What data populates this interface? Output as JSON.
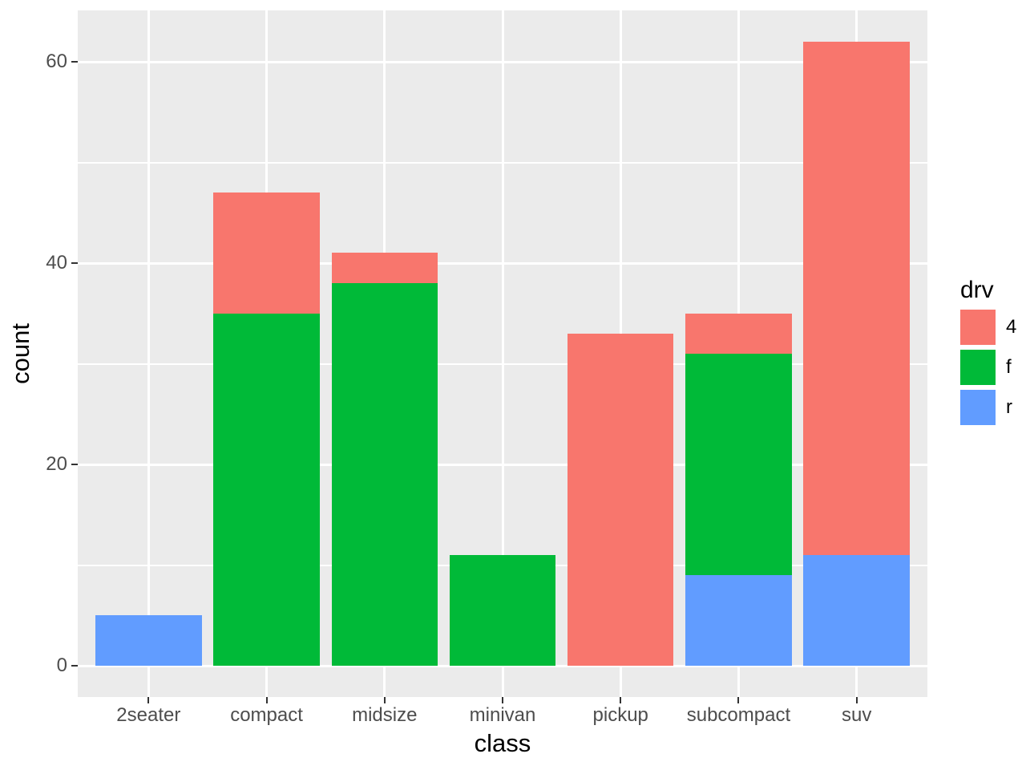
{
  "chart_data": {
    "type": "bar",
    "stacked": true,
    "title": "",
    "xlabel": "class",
    "ylabel": "count",
    "categories": [
      "2seater",
      "compact",
      "midsize",
      "minivan",
      "pickup",
      "subcompact",
      "suv"
    ],
    "series": [
      {
        "name": "r",
        "color": "#619CFF",
        "values": [
          5,
          0,
          0,
          0,
          0,
          9,
          11
        ]
      },
      {
        "name": "f",
        "color": "#00BA38",
        "values": [
          0,
          35,
          38,
          11,
          0,
          22,
          0
        ]
      },
      {
        "name": "4",
        "color": "#F8766D",
        "values": [
          0,
          12,
          3,
          0,
          33,
          4,
          51
        ]
      }
    ],
    "totals": [
      5,
      47,
      41,
      11,
      33,
      35,
      62
    ],
    "ylim": [
      -3.1,
      65.1
    ],
    "y_breaks": [
      0,
      20,
      40,
      60
    ],
    "y_minor_breaks": [
      10,
      30,
      50
    ],
    "bar_width_ratio": 0.9,
    "category_padding": 0.6,
    "grid": true,
    "legend": {
      "title": "drv",
      "position": "right",
      "entries": [
        {
          "label": "4",
          "color": "#F8766D"
        },
        {
          "label": "f",
          "color": "#00BA38"
        },
        {
          "label": "r",
          "color": "#619CFF"
        }
      ]
    },
    "theme": {
      "panel_bg": "#EBEBEB",
      "grid_color": "#FFFFFF",
      "axis_text_color": "#4D4D4D",
      "axis_title_color": "#000000",
      "tick_color": "#333333",
      "background": "#FFFFFF"
    }
  }
}
